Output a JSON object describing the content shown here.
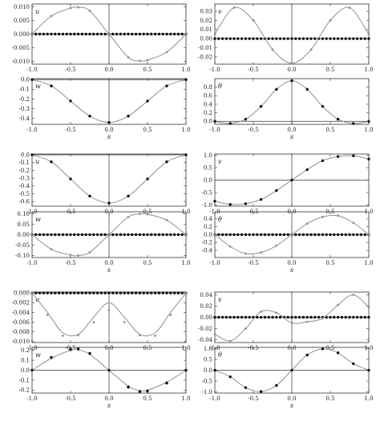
{
  "colors": {
    "black_series": "#111111",
    "gray_series": "#9a8c8c",
    "axis": "#333333",
    "frame": "#333333"
  },
  "chart_data": [
    {
      "type": "line",
      "group": 1,
      "ylabel": "u",
      "xlabel": "",
      "xlim": [
        -1,
        1
      ],
      "ylim": [
        -0.011,
        0.011
      ],
      "yticks": [
        "0.010",
        "0.005",
        "0.000",
        "-0.005",
        "-0.010"
      ],
      "ytick_values": [
        0.01,
        0.005,
        0,
        -0.005,
        -0.01
      ],
      "xticks": [
        "-1.0",
        "-0.5",
        "0.0",
        "0.5",
        "1.0"
      ],
      "xtick_values": [
        -1,
        -0.5,
        0,
        0.5,
        1
      ],
      "series": [
        {
          "style": "markers",
          "color": "black",
          "x": [
            -1,
            -0.5,
            0,
            0.5,
            1
          ],
          "y": [
            0,
            0,
            0,
            0,
            0
          ]
        },
        {
          "style": "line+markers",
          "color": "gray",
          "x": [
            -1,
            -0.75,
            -0.5,
            -0.4,
            -0.25,
            0,
            0.25,
            0.4,
            0.5,
            0.75,
            1
          ],
          "y": [
            0,
            0.0066,
            0.0095,
            0.0098,
            0.0085,
            0,
            -0.0085,
            -0.0098,
            -0.0095,
            -0.0066,
            0
          ]
        }
      ]
    },
    {
      "type": "line",
      "group": 1,
      "ylabel": "v",
      "xlabel": "",
      "xlim": [
        -1,
        1
      ],
      "ylim": [
        -0.028,
        0.038
      ],
      "yticks": [
        "0.03",
        "0.02",
        "0.01",
        "0.00",
        "-0.01",
        "-0.02"
      ],
      "ytick_values": [
        0.03,
        0.02,
        0.01,
        0,
        -0.01,
        -0.02
      ],
      "xticks": [
        "-1.0",
        "-0.5",
        "0.0",
        "0.5",
        "1.0"
      ],
      "xtick_values": [
        -1,
        -0.5,
        0,
        0.5,
        1
      ],
      "series": [
        {
          "style": "markers",
          "color": "black",
          "x": [
            -1,
            -0.5,
            0,
            0.5,
            1
          ],
          "y": [
            0,
            0,
            0,
            0,
            0
          ]
        },
        {
          "style": "line+markers",
          "color": "gray",
          "x": [
            -1,
            -0.75,
            -0.5,
            -0.25,
            0,
            0.25,
            0.5,
            0.75,
            1
          ],
          "y": [
            0.005,
            0.034,
            0.02,
            -0.012,
            -0.027,
            -0.012,
            0.02,
            0.034,
            0.005
          ]
        }
      ]
    },
    {
      "type": "line",
      "group": 1,
      "ylabel": "w",
      "xlabel": "s",
      "xlim": [
        -1,
        1
      ],
      "ylim": [
        -0.46,
        0.01
      ],
      "yticks": [
        "0.0",
        "-0.1",
        "-0.2",
        "-0.3",
        "-0.4"
      ],
      "ytick_values": [
        0,
        -0.1,
        -0.2,
        -0.3,
        -0.4
      ],
      "xticks": [
        "-1.0",
        "-0.5",
        "0.0",
        "0.5",
        "1.0"
      ],
      "xtick_values": [
        -1,
        -0.5,
        0,
        0.5,
        1
      ],
      "series": [
        {
          "style": "line+markers",
          "color": "gray",
          "x": [
            -1,
            -0.75,
            -0.5,
            -0.25,
            0,
            0.25,
            0.5,
            0.75,
            1
          ],
          "y": [
            0,
            -0.065,
            -0.22,
            -0.375,
            -0.44,
            -0.375,
            -0.22,
            -0.065,
            0
          ]
        },
        {
          "style": "markers",
          "color": "black",
          "x": [
            -1,
            -0.75,
            -0.5,
            -0.25,
            0,
            0.25,
            0.5,
            0.75,
            1
          ],
          "y": [
            0,
            -0.065,
            -0.22,
            -0.375,
            -0.44,
            -0.375,
            -0.22,
            -0.065,
            0
          ]
        }
      ]
    },
    {
      "type": "line",
      "group": 1,
      "ylabel": "θ",
      "xlabel": "s",
      "xlim": [
        -1,
        1
      ],
      "ylim": [
        -0.07,
        1.0
      ],
      "yticks": [
        "0.8",
        "0.6",
        "0.4",
        "0.2",
        "0.0"
      ],
      "ytick_values": [
        0.8,
        0.6,
        0.4,
        0.2,
        0
      ],
      "xticks": [
        "-1.0",
        "-0.5",
        "0.0",
        "0.5",
        "1.0"
      ],
      "xtick_values": [
        -1,
        -0.5,
        0,
        0.5,
        1
      ],
      "series": [
        {
          "style": "line+markers",
          "color": "gray",
          "x": [
            -1,
            -0.8,
            -0.6,
            -0.4,
            -0.2,
            0,
            0.2,
            0.4,
            0.6,
            0.8,
            1
          ],
          "y": [
            0,
            -0.05,
            0.05,
            0.35,
            0.75,
            0.95,
            0.75,
            0.35,
            0.05,
            -0.05,
            0
          ]
        },
        {
          "style": "markers",
          "color": "black",
          "x": [
            -1,
            -0.8,
            -0.6,
            -0.4,
            -0.2,
            0,
            0.2,
            0.4,
            0.6,
            0.8,
            1
          ],
          "y": [
            0,
            -0.05,
            0.05,
            0.35,
            0.75,
            0.95,
            0.75,
            0.35,
            0.05,
            -0.05,
            0
          ]
        }
      ]
    },
    {
      "type": "line",
      "group": 2,
      "ylabel": "u",
      "xlabel": "",
      "xlim": [
        -1,
        1
      ],
      "ylim": [
        -0.66,
        0.01
      ],
      "yticks": [
        "0.0",
        "-0.1",
        "-0.2",
        "-0.3",
        "-0.4",
        "-0.5",
        "-0.6"
      ],
      "ytick_values": [
        0,
        -0.1,
        -0.2,
        -0.3,
        -0.4,
        -0.5,
        -0.6
      ],
      "xticks": [
        "-1.0",
        "-0.5",
        "0.0",
        "0.5",
        "1.0"
      ],
      "xtick_values": [
        -1,
        -0.5,
        0,
        0.5,
        1
      ],
      "series": [
        {
          "style": "line+markers",
          "color": "gray",
          "x": [
            -1,
            -0.75,
            -0.5,
            -0.25,
            0,
            0.25,
            0.5,
            0.75,
            1
          ],
          "y": [
            0,
            -0.09,
            -0.31,
            -0.53,
            -0.62,
            -0.53,
            -0.31,
            -0.09,
            0
          ]
        },
        {
          "style": "markers",
          "color": "black",
          "x": [
            -1,
            -0.75,
            -0.5,
            -0.25,
            0,
            0.25,
            0.5,
            0.75,
            1
          ],
          "y": [
            0,
            -0.09,
            -0.31,
            -0.53,
            -0.62,
            -0.53,
            -0.31,
            -0.09,
            0
          ]
        }
      ]
    },
    {
      "type": "line",
      "group": 2,
      "ylabel": "v",
      "xlabel": "",
      "xlim": [
        -1,
        1
      ],
      "ylim": [
        -1.05,
        1.05
      ],
      "yticks": [
        "1.0",
        "0.5",
        "0.0",
        "-0.5",
        "-1.0"
      ],
      "ytick_values": [
        1,
        0.5,
        0,
        -0.5,
        -1
      ],
      "xticks": [
        "-1.0",
        "-0.5",
        "0.0",
        "0.5",
        "1.0"
      ],
      "xtick_values": [
        -1,
        -0.5,
        0,
        0.5,
        1
      ],
      "series": [
        {
          "style": "line+markers",
          "color": "gray",
          "x": [
            -1,
            -0.8,
            -0.6,
            -0.4,
            -0.2,
            0,
            0.2,
            0.4,
            0.6,
            0.8,
            1
          ],
          "y": [
            -0.85,
            -0.98,
            -0.95,
            -0.78,
            -0.42,
            0,
            0.42,
            0.78,
            0.95,
            0.98,
            0.85
          ]
        },
        {
          "style": "markers",
          "color": "black",
          "x": [
            -1,
            -0.8,
            -0.6,
            -0.4,
            -0.2,
            0,
            0.2,
            0.4,
            0.6,
            0.8,
            1
          ],
          "y": [
            -0.85,
            -0.98,
            -0.95,
            -0.78,
            -0.42,
            0,
            0.42,
            0.78,
            0.95,
            0.98,
            0.85
          ]
        }
      ]
    },
    {
      "type": "line",
      "group": 2,
      "ylabel": "w",
      "xlabel": "s",
      "xlim": [
        -1,
        1
      ],
      "ylim": [
        -0.11,
        0.11
      ],
      "yticks": [
        "0.10",
        "0.05",
        "0.00",
        "-0.05",
        "-0.10"
      ],
      "ytick_values": [
        0.1,
        0.05,
        0,
        -0.05,
        -0.1
      ],
      "xticks": [
        "-1.0",
        "-0.5",
        "0.0",
        "0.5",
        "1.0"
      ],
      "xtick_values": [
        -1,
        -0.5,
        0,
        0.5,
        1
      ],
      "series": [
        {
          "style": "markers",
          "color": "black",
          "x": [
            -1,
            -0.5,
            0,
            0.5,
            1
          ],
          "y": [
            0,
            0,
            0,
            0,
            0
          ]
        },
        {
          "style": "line+markers",
          "color": "gray",
          "x": [
            -1,
            -0.75,
            -0.5,
            -0.4,
            -0.25,
            0,
            0.25,
            0.4,
            0.5,
            0.75,
            1
          ],
          "y": [
            0,
            -0.07,
            -0.098,
            -0.1,
            -0.085,
            0,
            0.085,
            0.1,
            0.098,
            0.07,
            0
          ]
        }
      ]
    },
    {
      "type": "line",
      "group": 2,
      "ylabel": "θ",
      "xlabel": "s",
      "xlim": [
        -1,
        1
      ],
      "ylim": [
        -0.58,
        0.58
      ],
      "yticks": [
        "0.4",
        "0.2",
        "0.0",
        "-0.2",
        "-0.4"
      ],
      "ytick_values": [
        0.4,
        0.2,
        0,
        -0.2,
        -0.4
      ],
      "xticks": [
        "-1.0",
        "-0.5",
        "0.0",
        "0.5",
        "1.0"
      ],
      "xtick_values": [
        -1,
        -0.5,
        0,
        0.5,
        1
      ],
      "series": [
        {
          "style": "markers",
          "color": "black",
          "x": [
            -1,
            -0.5,
            0,
            0.5,
            1
          ],
          "y": [
            0,
            0,
            0,
            0,
            0
          ]
        },
        {
          "style": "line+markers",
          "color": "gray",
          "x": [
            -1,
            -0.8,
            -0.6,
            -0.4,
            -0.2,
            0,
            0.2,
            0.4,
            0.6,
            0.8,
            1
          ],
          "y": [
            0,
            -0.3,
            -0.48,
            -0.45,
            -0.28,
            0,
            0.28,
            0.45,
            0.48,
            0.3,
            0
          ]
        }
      ]
    },
    {
      "type": "line",
      "group": 3,
      "ylabel": "u",
      "xlabel": "",
      "xlim": [
        -1,
        1
      ],
      "ylim": [
        -0.0102,
        0.0002
      ],
      "yticks": [
        "0.000",
        "-0.002",
        "-0.004",
        "-0.006",
        "-0.008",
        "-0.010"
      ],
      "ytick_values": [
        0,
        -0.002,
        -0.004,
        -0.006,
        -0.008,
        -0.01
      ],
      "xticks": [
        "-1.0",
        "-0.5",
        "0.0",
        "0.5",
        "1.0"
      ],
      "xtick_values": [
        -1,
        -0.5,
        0,
        0.5,
        1
      ],
      "series": [
        {
          "style": "markers",
          "color": "black",
          "x": [
            -1,
            -0.5,
            0,
            0.5,
            1
          ],
          "y": [
            0,
            0,
            0,
            0,
            0
          ]
        },
        {
          "style": "line",
          "color": "gray",
          "x": [
            -1,
            -0.8,
            -0.6,
            -0.4,
            -0.2,
            0,
            0.2,
            0.4,
            0.6,
            0.8,
            1
          ],
          "y": [
            0,
            -0.004,
            -0.0082,
            -0.0085,
            -0.005,
            -0.002,
            -0.005,
            -0.0085,
            -0.0082,
            -0.004,
            0
          ]
        },
        {
          "style": "markers",
          "color": "gray",
          "x": [
            -1,
            -0.8,
            -0.6,
            -0.4,
            -0.2,
            0,
            0.2,
            0.4,
            0.6,
            0.8,
            1
          ],
          "y": [
            0,
            -0.0045,
            -0.0088,
            -0.0087,
            -0.006,
            -0.0035,
            -0.006,
            -0.0087,
            -0.0088,
            -0.0045,
            0
          ]
        }
      ]
    },
    {
      "type": "line",
      "group": 3,
      "ylabel": "v",
      "xlabel": "",
      "xlim": [
        -1,
        1
      ],
      "ylim": [
        -0.045,
        0.045
      ],
      "yticks": [
        "0.04",
        "0.02",
        "0.00",
        "-0.02",
        "-0.04"
      ],
      "ytick_values": [
        0.04,
        0.02,
        0,
        -0.02,
        -0.04
      ],
      "xticks": [
        "-1.0",
        "-0.5",
        "0.0",
        "0.5",
        "1.0"
      ],
      "xtick_values": [
        -1,
        -0.5,
        0,
        0.5,
        1
      ],
      "series": [
        {
          "style": "markers",
          "color": "black",
          "x": [
            -1,
            -0.5,
            0,
            0.5,
            1
          ],
          "y": [
            0,
            0,
            0,
            0,
            0
          ]
        },
        {
          "style": "line+markers",
          "color": "gray",
          "x": [
            -1,
            -0.8,
            -0.6,
            -0.4,
            -0.2,
            0,
            0.2,
            0.4,
            0.6,
            0.8,
            1
          ],
          "y": [
            -0.03,
            -0.042,
            -0.02,
            0.01,
            0.008,
            -0.01,
            -0.008,
            -0.002,
            0.022,
            0.04,
            0.018
          ]
        }
      ]
    },
    {
      "type": "line",
      "group": 3,
      "ylabel": "w",
      "xlabel": "s",
      "xlim": [
        -1,
        1
      ],
      "ylim": [
        -0.23,
        0.23
      ],
      "yticks": [
        "0.2",
        "0.1",
        "0.0",
        "-0.1",
        "-0.2"
      ],
      "ytick_values": [
        0.2,
        0.1,
        0,
        -0.1,
        -0.2
      ],
      "xticks": [
        "-1.0",
        "-0.5",
        "0.0",
        "0.5",
        "1.0"
      ],
      "xtick_values": [
        -1,
        -0.5,
        0,
        0.5,
        1
      ],
      "series": [
        {
          "style": "line+markers",
          "color": "gray",
          "x": [
            -1,
            -0.75,
            -0.5,
            -0.4,
            -0.25,
            0,
            0.25,
            0.4,
            0.5,
            0.75,
            1
          ],
          "y": [
            0,
            0.12,
            0.2,
            0.205,
            0.16,
            0,
            -0.16,
            -0.205,
            -0.2,
            -0.12,
            0
          ]
        },
        {
          "style": "markers",
          "color": "black",
          "x": [
            -1,
            -0.75,
            -0.5,
            -0.4,
            -0.25,
            0,
            0.25,
            0.4,
            0.5,
            0.75,
            1
          ],
          "y": [
            0,
            0.13,
            0.21,
            0.215,
            0.17,
            0,
            -0.17,
            -0.215,
            -0.21,
            -0.13,
            0
          ]
        }
      ]
    },
    {
      "type": "line",
      "group": 3,
      "ylabel": "θ",
      "xlabel": "s",
      "xlim": [
        -1,
        1
      ],
      "ylim": [
        -1.05,
        1.05
      ],
      "yticks": [
        "1.0",
        "0.5",
        "0.0",
        "-0.5",
        "-1.0"
      ],
      "ytick_values": [
        1,
        0.5,
        0,
        -0.5,
        -1
      ],
      "xticks": [
        "-1.0",
        "-0.5",
        "0.0",
        "0.5",
        "1.0"
      ],
      "xtick_values": [
        -1,
        -0.5,
        0,
        0.5,
        1
      ],
      "series": [
        {
          "style": "line+markers",
          "color": "gray",
          "x": [
            -1,
            -0.8,
            -0.6,
            -0.4,
            -0.2,
            0,
            0.2,
            0.4,
            0.6,
            0.8,
            1
          ],
          "y": [
            0,
            -0.3,
            -0.8,
            -0.98,
            -0.7,
            0,
            0.7,
            0.98,
            0.8,
            0.3,
            0
          ]
        },
        {
          "style": "markers",
          "color": "black",
          "x": [
            -1,
            -0.8,
            -0.6,
            -0.4,
            -0.2,
            0,
            0.2,
            0.4,
            0.6,
            0.8,
            1
          ],
          "y": [
            0,
            -0.3,
            -0.8,
            -0.98,
            -0.7,
            0,
            0.7,
            0.98,
            0.8,
            0.3,
            0
          ]
        }
      ]
    }
  ]
}
